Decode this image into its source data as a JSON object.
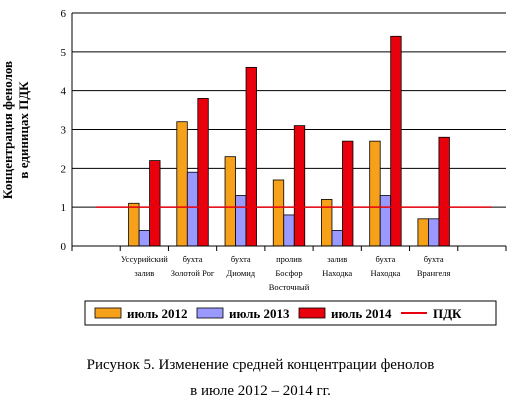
{
  "chart_data": {
    "type": "bar",
    "ylabel": "Концентрация фенолов в единицах ПДК",
    "ylabel_lines": [
      "Концентрация фенолов",
      "в единицах ПДК"
    ],
    "ylim": [
      0,
      6
    ],
    "yticks": [
      "0",
      "1",
      "2",
      "3",
      "4",
      "5",
      "6"
    ],
    "grid": true,
    "legend_position": "bottom",
    "categories": [
      [
        "Уссурийский",
        "залив"
      ],
      [
        "бухта",
        "Золотой Рог"
      ],
      [
        "бухта",
        "Диомид"
      ],
      [
        "пролив",
        "Босфор",
        "Восточный"
      ],
      [
        "залив",
        "Находка"
      ],
      [
        "бухта",
        "Находка"
      ],
      [
        "бухта",
        "Врангеля"
      ]
    ],
    "series": [
      {
        "name": "июль 2012",
        "color": "#f7a11a",
        "values": [
          1.1,
          3.2,
          2.3,
          1.7,
          1.2,
          2.7,
          0.7
        ]
      },
      {
        "name": "июль 2013",
        "color": "#9999ff",
        "values": [
          0.4,
          1.9,
          1.3,
          0.8,
          0.4,
          1.3,
          0.7
        ]
      },
      {
        "name": "июль 2014",
        "color": "#e8000c",
        "values": [
          2.2,
          3.8,
          4.6,
          3.1,
          2.7,
          5.4,
          2.8
        ]
      }
    ],
    "reference_line": {
      "name": "ПДК",
      "value": 1,
      "color": "#e8000c"
    }
  },
  "caption": {
    "line1": "Рисунок 5. Изменение средней концентрации фенолов",
    "line2": "в июле 2012 – 2014 гг."
  }
}
